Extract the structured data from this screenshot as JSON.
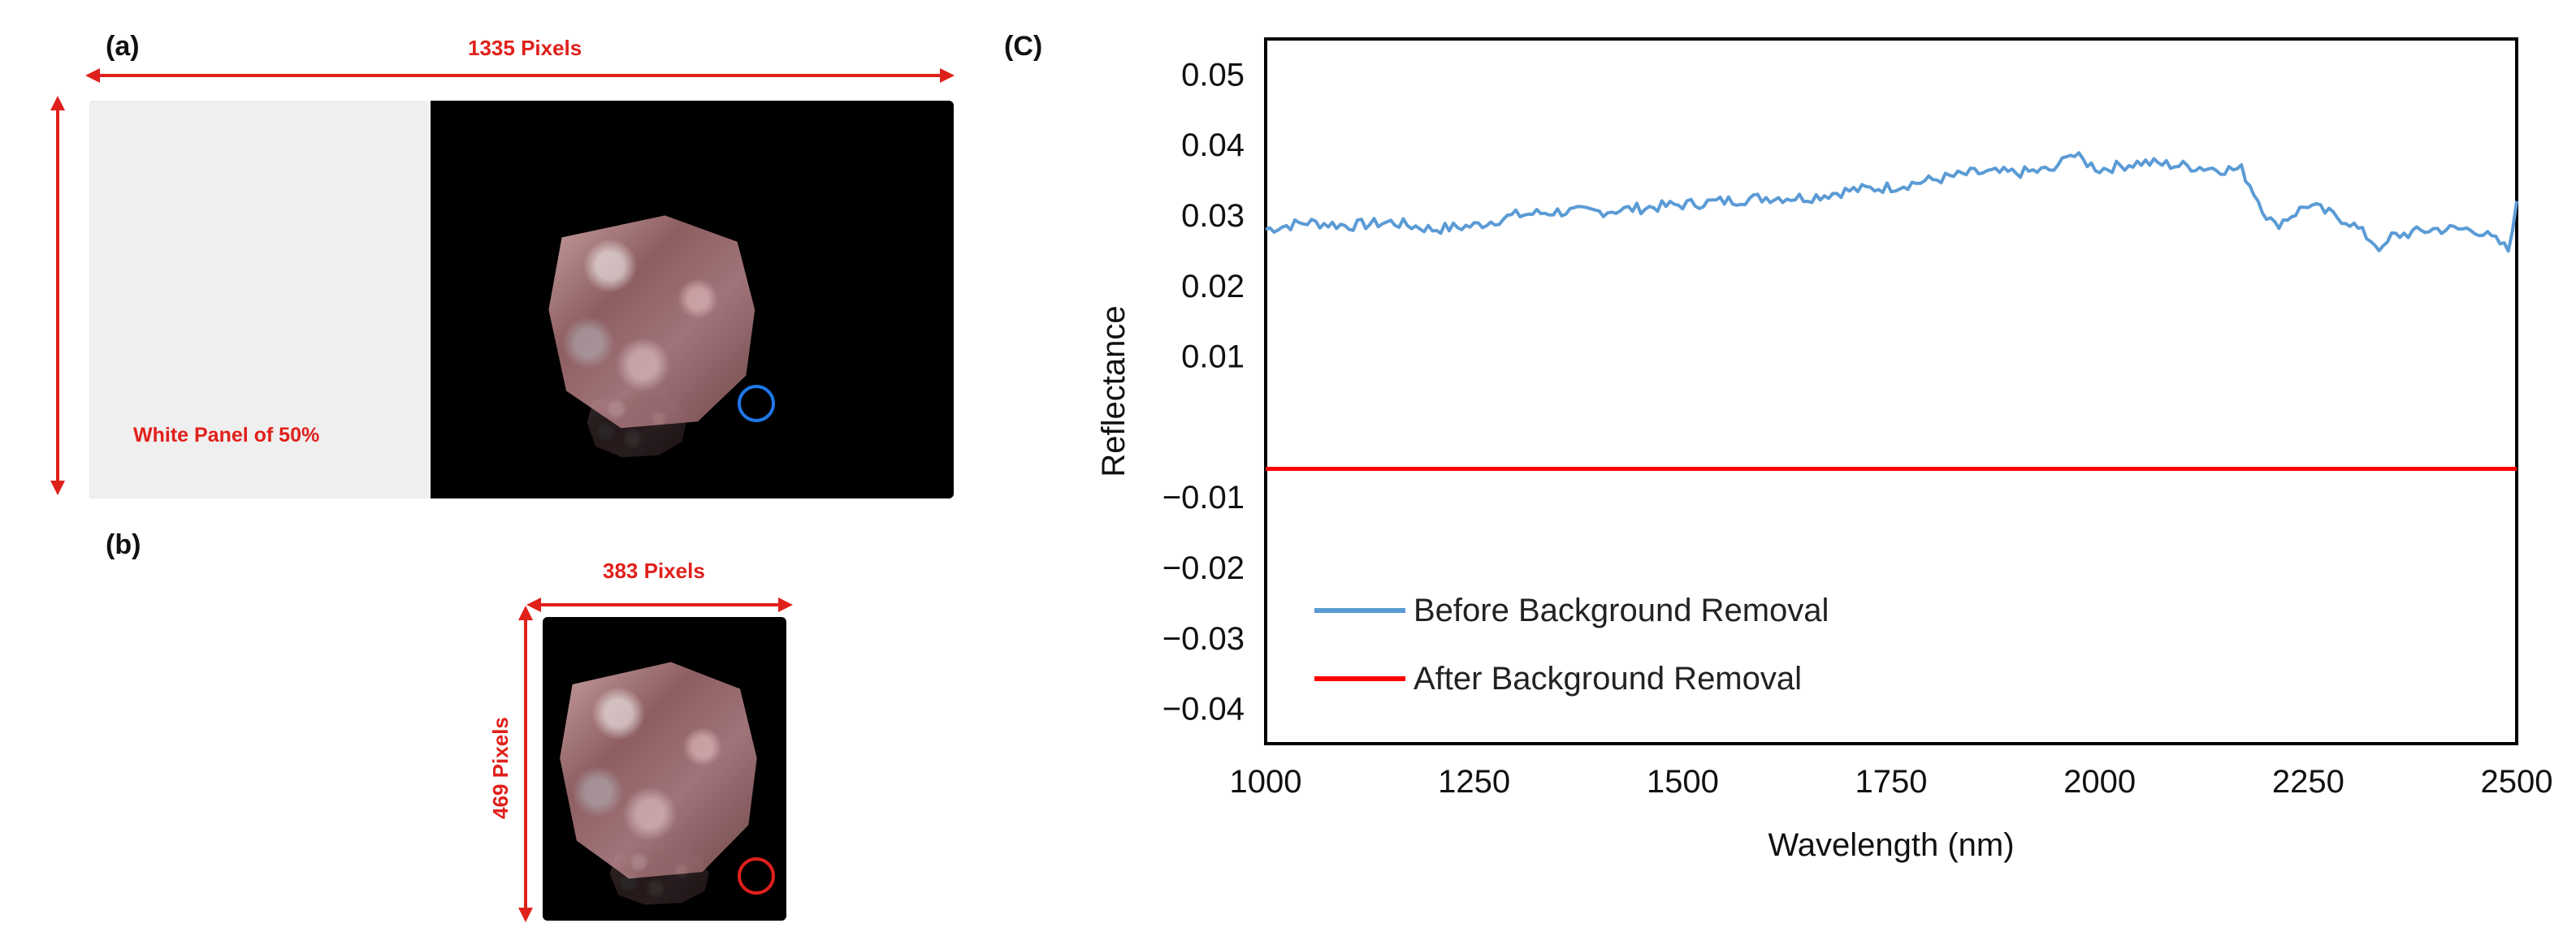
{
  "panels": {
    "a": {
      "label": "(a)",
      "width_label": "1335 Pixels",
      "panel_text": "White Panel of 50%"
    },
    "b": {
      "label": "(b)",
      "width_label": "383 Pixels",
      "height_label": "469 Pixels"
    },
    "c": {
      "label": "(C)"
    }
  },
  "colors": {
    "annotation_red": "#e0201b",
    "before_series": "#5b9bd5",
    "after_series": "#ff0000",
    "roi_circle_a": "#1f77e8",
    "roi_circle_b": "#e0201b"
  },
  "chart_data": {
    "type": "line",
    "title": "",
    "xlabel": "Wavelength (nm)",
    "ylabel": "Reflectance",
    "xlim": [
      1000,
      2500
    ],
    "ylim": [
      -0.045,
      0.055
    ],
    "xticks": [
      1000,
      1250,
      1500,
      1750,
      2000,
      2250,
      2500
    ],
    "yticks": [
      0.05,
      0.04,
      0.03,
      0.02,
      0.01,
      -0.01,
      -0.02,
      -0.03,
      -0.04
    ],
    "ytick_labels": [
      "0.05",
      "0.04",
      "0.03",
      "0.02",
      "0.01",
      "−0.01",
      "−0.02",
      "−0.03",
      "−0.04"
    ],
    "legend_position": "bottom-left",
    "series": [
      {
        "name": "Before Background Removal",
        "color": "#5b9bd5",
        "x": [
          1000,
          1050,
          1100,
          1150,
          1200,
          1250,
          1300,
          1350,
          1400,
          1450,
          1500,
          1550,
          1600,
          1650,
          1700,
          1750,
          1800,
          1850,
          1900,
          1950,
          1960,
          2000,
          2050,
          2100,
          2150,
          2170,
          2200,
          2210,
          2250,
          2300,
          2340,
          2350,
          2400,
          2450,
          2480,
          2490,
          2500
        ],
        "y": [
          0.028,
          0.029,
          0.0285,
          0.029,
          0.028,
          0.0285,
          0.03,
          0.0305,
          0.0305,
          0.031,
          0.0315,
          0.032,
          0.0325,
          0.0325,
          0.0335,
          0.034,
          0.035,
          0.036,
          0.036,
          0.0365,
          0.039,
          0.0365,
          0.0375,
          0.037,
          0.0365,
          0.0365,
          0.03,
          0.0285,
          0.0315,
          0.029,
          0.025,
          0.027,
          0.028,
          0.028,
          0.026,
          0.025,
          0.032
        ]
      },
      {
        "name": "After Background Removal",
        "color": "#ff0000",
        "x": [
          1000,
          2500
        ],
        "y": [
          -0.006,
          -0.006
        ]
      }
    ]
  }
}
